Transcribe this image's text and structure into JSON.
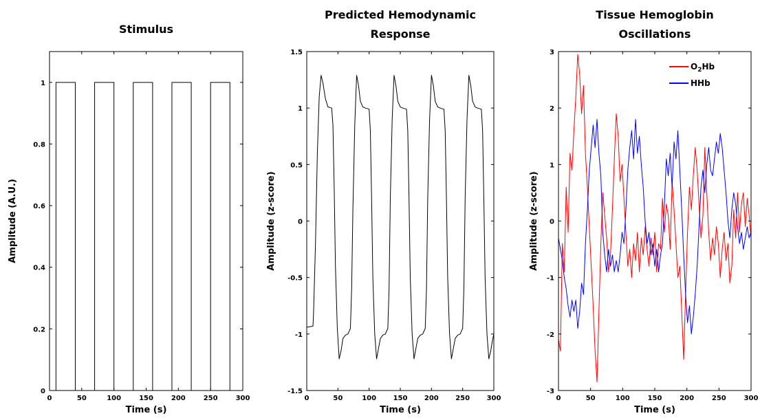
{
  "chart_data": [
    {
      "id": "stimulus",
      "type": "line",
      "title": [
        "Stimulus"
      ],
      "xlabel": "Time (s)",
      "ylabel": "Amplitude (A.U.)",
      "xlim": [
        0,
        300
      ],
      "ylim": [
        0,
        1.1
      ],
      "xticks": [
        0,
        50,
        100,
        150,
        200,
        250,
        300
      ],
      "yticks": [
        0,
        0.2,
        0.4,
        0.6,
        0.8,
        1
      ],
      "ytick_labels": [
        "0",
        "0.2",
        "0.4",
        "0.6",
        "0.8",
        "1"
      ],
      "grid": false,
      "legend": [],
      "series": [
        {
          "color": "#000000",
          "x": [
            0,
            10,
            10,
            40,
            40,
            70,
            70,
            100,
            100,
            130,
            130,
            160,
            160,
            190,
            190,
            220,
            220,
            250,
            250,
            280,
            280,
            300
          ],
          "y": [
            0,
            0,
            1,
            1,
            0,
            0,
            1,
            1,
            0,
            0,
            1,
            1,
            0,
            0,
            1,
            1,
            0,
            0,
            1,
            1,
            0,
            0
          ]
        }
      ]
    },
    {
      "id": "hemodynamic",
      "type": "line",
      "title": [
        "Predicted Hemodynamic",
        "Response"
      ],
      "xlabel": "Time (s)",
      "ylabel": "Amplitude (z-score)",
      "xlim": [
        0,
        300
      ],
      "ylim": [
        -1.5,
        1.5
      ],
      "xticks": [
        0,
        50,
        100,
        150,
        200,
        250,
        300
      ],
      "yticks": [
        -1.5,
        -1,
        -0.5,
        0,
        0.5,
        1,
        1.5
      ],
      "ytick_labels": [
        "-1.5",
        "-1",
        "-0.5",
        "0",
        "0.5",
        "1",
        "1.5"
      ],
      "grid": false,
      "legend": [],
      "series": [
        {
          "color": "#000000",
          "x": [
            0,
            10,
            11,
            14,
            17,
            20,
            23,
            26,
            30,
            34,
            40,
            42,
            44,
            46,
            49,
            52,
            55,
            58,
            62,
            66,
            70,
            72,
            74,
            77,
            80,
            83,
            86,
            90,
            94,
            100,
            102,
            104,
            106,
            109,
            112,
            115,
            118,
            122,
            126,
            130,
            132,
            134,
            137,
            140,
            143,
            146,
            150,
            154,
            160,
            162,
            164,
            166,
            169,
            172,
            175,
            178,
            182,
            186,
            190,
            192,
            194,
            197,
            200,
            203,
            206,
            210,
            214,
            220,
            222,
            224,
            226,
            229,
            232,
            235,
            238,
            242,
            246,
            250,
            252,
            254,
            257,
            260,
            263,
            266,
            270,
            274,
            280,
            282,
            284,
            286,
            289,
            292,
            295,
            298,
            300
          ],
          "y": [
            -0.94,
            -0.93,
            -0.8,
            -0.2,
            0.6,
            1.1,
            1.29,
            1.22,
            1.08,
            1.01,
            1.0,
            0.85,
            0.3,
            -0.4,
            -0.95,
            -1.22,
            -1.15,
            -1.04,
            -1.01,
            -1.0,
            -0.95,
            -0.6,
            0.1,
            0.85,
            1.29,
            1.2,
            1.06,
            1.01,
            1.0,
            0.99,
            0.8,
            0.2,
            -0.5,
            -1.0,
            -1.22,
            -1.13,
            -1.04,
            -1.01,
            -1.0,
            -0.95,
            -0.6,
            0.2,
            0.9,
            1.29,
            1.2,
            1.06,
            1.01,
            1.0,
            0.99,
            0.8,
            0.2,
            -0.5,
            -1.0,
            -1.22,
            -1.13,
            -1.04,
            -1.01,
            -1.0,
            -0.95,
            -0.6,
            0.2,
            0.9,
            1.29,
            1.2,
            1.06,
            1.01,
            1.0,
            0.99,
            0.8,
            0.2,
            -0.5,
            -1.0,
            -1.22,
            -1.13,
            -1.04,
            -1.01,
            -1.0,
            -0.95,
            -0.6,
            0.2,
            0.9,
            1.29,
            1.2,
            1.06,
            1.01,
            1.0,
            0.99,
            0.8,
            0.2,
            -0.5,
            -1.0,
            -1.22,
            -1.15,
            -1.05,
            -1.0
          ]
        }
      ]
    },
    {
      "id": "tissue",
      "type": "line",
      "title": [
        "Tissue Hemoglobin",
        "Oscillations"
      ],
      "xlabel": "Time (s)",
      "ylabel": "Amplitude (z-score)",
      "xlim": [
        0,
        300
      ],
      "ylim": [
        -3,
        3
      ],
      "xticks": [
        0,
        50,
        100,
        150,
        200,
        250,
        300
      ],
      "yticks": [
        -3,
        -2,
        -1,
        0,
        1,
        2,
        3
      ],
      "ytick_labels": [
        "-3",
        "-2",
        "-1",
        "0",
        "1",
        "2",
        "3"
      ],
      "grid": false,
      "legend": [
        {
          "base": "O",
          "sub": "2",
          "rest": "Hb",
          "color": "#ff0000"
        },
        {
          "base": "HHb",
          "sub": "",
          "rest": "",
          "color": "#0000ff"
        }
      ],
      "series": [
        {
          "color": "#ff0000",
          "x": [
            0,
            3,
            6,
            9,
            12,
            15,
            18,
            21,
            24,
            27,
            30,
            33,
            36,
            39,
            42,
            45,
            48,
            51,
            54,
            57,
            60,
            63,
            66,
            69,
            72,
            75,
            78,
            81,
            84,
            87,
            90,
            93,
            96,
            99,
            102,
            105,
            108,
            111,
            114,
            117,
            120,
            123,
            126,
            129,
            132,
            135,
            138,
            141,
            144,
            147,
            150,
            153,
            156,
            159,
            162,
            165,
            168,
            171,
            174,
            177,
            180,
            183,
            186,
            189,
            192,
            195,
            198,
            201,
            204,
            207,
            210,
            213,
            216,
            219,
            222,
            225,
            228,
            231,
            234,
            237,
            240,
            243,
            246,
            249,
            252,
            255,
            258,
            261,
            264,
            267,
            270,
            273,
            276,
            279,
            282,
            285,
            288,
            291,
            294,
            297,
            300
          ],
          "y": [
            -2.1,
            -2.3,
            -0.4,
            -0.9,
            0.6,
            -0.2,
            1.2,
            0.9,
            1.6,
            2.2,
            2.95,
            2.6,
            1.9,
            2.4,
            1.2,
            0.6,
            -0.1,
            -0.8,
            -1.5,
            -2.3,
            -2.85,
            -1.6,
            -0.4,
            0.5,
            0.1,
            -0.3,
            -0.9,
            -0.6,
            0.2,
            1.1,
            1.9,
            1.5,
            0.7,
            1.0,
            0.4,
            -0.2,
            -0.8,
            -0.5,
            -1.0,
            -0.4,
            -0.7,
            -0.2,
            -0.9,
            -0.3,
            -0.6,
            -0.1,
            -0.5,
            -0.8,
            -0.3,
            -0.6,
            -0.2,
            -0.9,
            -0.4,
            -0.5,
            0.4,
            -0.2,
            0.3,
            0.1,
            -0.5,
            0.7,
            0.2,
            -0.4,
            -1.0,
            -0.8,
            -1.6,
            -2.45,
            -1.3,
            -0.2,
            0.6,
            0.2,
            0.8,
            1.3,
            0.9,
            0.3,
            -0.3,
            0.1,
            1.3,
            0.5,
            -0.2,
            -0.7,
            -0.3,
            -0.6,
            -0.1,
            -0.4,
            -1.0,
            -0.5,
            -0.2,
            -0.7,
            -0.4,
            -1.1,
            -0.8,
            0.2,
            -0.3,
            0.5,
            -0.2,
            0.3,
            0.5,
            -0.1,
            0.4,
            0.1,
            -0.3
          ]
        },
        {
          "color": "#0000ff",
          "x": [
            0,
            3,
            6,
            9,
            12,
            15,
            18,
            21,
            24,
            27,
            30,
            33,
            36,
            39,
            42,
            45,
            48,
            51,
            54,
            57,
            60,
            63,
            66,
            69,
            72,
            75,
            78,
            81,
            84,
            87,
            90,
            93,
            96,
            99,
            102,
            105,
            108,
            111,
            114,
            117,
            120,
            123,
            126,
            129,
            132,
            135,
            138,
            141,
            144,
            147,
            150,
            153,
            156,
            159,
            162,
            165,
            168,
            171,
            174,
            177,
            180,
            183,
            186,
            189,
            192,
            195,
            198,
            201,
            204,
            207,
            210,
            213,
            216,
            219,
            222,
            225,
            228,
            231,
            234,
            237,
            240,
            243,
            246,
            249,
            252,
            255,
            258,
            261,
            264,
            267,
            270,
            273,
            276,
            279,
            282,
            285,
            288,
            291,
            294,
            297,
            300
          ],
          "y": [
            -0.3,
            -0.5,
            -0.7,
            -1.0,
            -1.2,
            -1.5,
            -1.7,
            -1.4,
            -1.6,
            -1.4,
            -1.9,
            -1.6,
            -1.1,
            -1.3,
            -0.4,
            0.2,
            0.9,
            1.3,
            1.7,
            1.3,
            1.8,
            1.2,
            0.8,
            -0.2,
            -0.6,
            -0.9,
            -0.5,
            -0.8,
            -0.6,
            -0.9,
            -0.7,
            -0.9,
            -0.6,
            -0.2,
            -0.4,
            0.2,
            0.9,
            1.3,
            1.6,
            1.1,
            1.8,
            1.2,
            1.5,
            1.0,
            0.6,
            0.0,
            -0.4,
            -0.2,
            -0.6,
            -0.4,
            -0.8,
            -0.5,
            -0.9,
            -0.6,
            -0.4,
            0.3,
            1.1,
            0.8,
            1.2,
            0.6,
            1.4,
            1.1,
            1.6,
            0.9,
            0.2,
            -0.6,
            -1.3,
            -1.8,
            -1.5,
            -2.0,
            -1.7,
            -1.3,
            -0.8,
            -0.1,
            0.6,
            0.9,
            0.5,
            1.0,
            1.3,
            0.9,
            0.8,
            1.1,
            1.4,
            1.2,
            1.55,
            1.3,
            0.9,
            0.5,
            0.0,
            -0.3,
            0.2,
            0.5,
            0.3,
            -0.1,
            -0.4,
            -0.2,
            -0.5,
            -0.3,
            -0.1,
            -0.3,
            -0.2
          ]
        }
      ]
    }
  ]
}
